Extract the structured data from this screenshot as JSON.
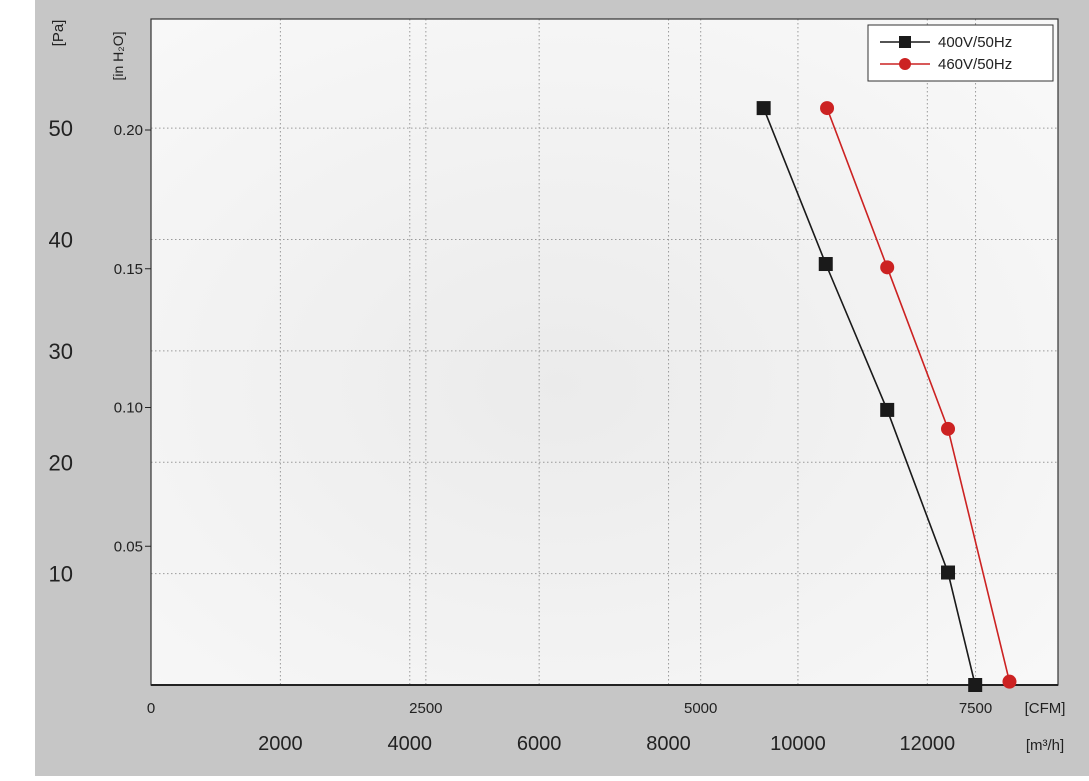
{
  "chart_data": {
    "type": "line",
    "units": {
      "pa": "[Pa]",
      "inh2o": "[in H₂O]",
      "cfm": "[CFM]",
      "m3h": "[m³/h]"
    },
    "axes": {
      "pa": {
        "ticks": [
          10,
          20,
          30,
          40,
          50
        ],
        "range": [
          0,
          59.8
        ]
      },
      "inh2o": {
        "ticks": [
          "0.05",
          "0.10",
          "0.15",
          "0.20"
        ],
        "range": [
          0,
          0.24
        ]
      },
      "cfm": {
        "ticks": [
          0,
          2500,
          5000,
          7500
        ],
        "range": [
          0,
          8250
        ]
      },
      "m3h": {
        "ticks": [
          2000,
          4000,
          6000,
          8000,
          10000,
          12000
        ],
        "range": [
          0,
          14020
        ]
      }
    },
    "grid": true,
    "legend_position": "top-right",
    "series": [
      {
        "name": "400V/50Hz",
        "color": "#1a1a1a",
        "marker": "square",
        "points": [
          {
            "x": 9470,
            "y": 51.8
          },
          {
            "x": 10430,
            "y": 37.8
          },
          {
            "x": 11380,
            "y": 24.7
          },
          {
            "x": 12320,
            "y": 10.1
          },
          {
            "x": 12740,
            "y": 0
          }
        ]
      },
      {
        "name": "460V/50Hz",
        "color": "#cc2222",
        "marker": "circle",
        "points": [
          {
            "x": 10450,
            "y": 51.8
          },
          {
            "x": 11380,
            "y": 37.5
          },
          {
            "x": 12320,
            "y": 23.0
          },
          {
            "x": 13270,
            "y": 0.3
          }
        ]
      }
    ]
  }
}
